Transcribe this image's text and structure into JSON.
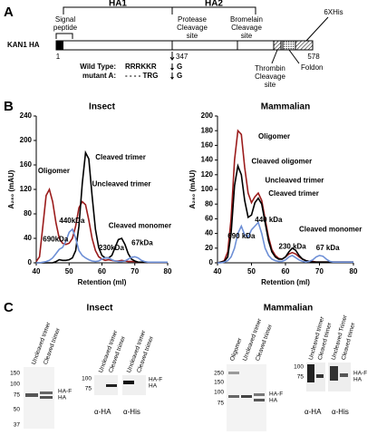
{
  "panel_labels": [
    "A",
    "B",
    "C"
  ],
  "panel_a": {
    "ha1": "HA1",
    "ha2": "HA2",
    "signal_peptide": [
      "Signal",
      "peptide"
    ],
    "protease_site": [
      "Protease",
      "Cleavage",
      "site"
    ],
    "bromelain_site": [
      "Bromelain",
      "Cleavage",
      "site"
    ],
    "his_tag": "6XHis",
    "construct": "KAN1 HA",
    "start": "1",
    "cleavage_position": "347",
    "end": "578",
    "wild_type_label": "Wild Type:",
    "wild_type_seq": "RRRKKR",
    "wild_type_product": "G",
    "mutant_label": "mutant A:",
    "mutant_seq": "- - - - TRG",
    "mutant_product": "G",
    "thrombin_site": [
      "Thrombin",
      "Cleavage",
      "site"
    ],
    "foldon": "Foldon"
  },
  "chart_data": [
    {
      "type": "line",
      "title": "Insect",
      "x_label": "Retention (ml)",
      "y_label": "A₂₈₀ (mAU)",
      "x": [
        40,
        41,
        42,
        43,
        44,
        45,
        46,
        47,
        48,
        49,
        50,
        51,
        52,
        53,
        54,
        55,
        56,
        57,
        58,
        59,
        60,
        61,
        62,
        63,
        64,
        65,
        66,
        67,
        68,
        69,
        70,
        71,
        72,
        73,
        74,
        75,
        76,
        77,
        78,
        79,
        80
      ],
      "series": [
        {
          "color": "#9b1c1c",
          "values": [
            2,
            10,
            60,
            110,
            120,
            100,
            65,
            40,
            32,
            30,
            32,
            40,
            60,
            90,
            100,
            95,
            70,
            40,
            20,
            10,
            6,
            4,
            5,
            4,
            3,
            3,
            4,
            3,
            2,
            2,
            2,
            1,
            1,
            1,
            1,
            1,
            1,
            1,
            1,
            1,
            1
          ]
        },
        {
          "color": "#000000",
          "values": [
            0,
            0,
            0,
            0,
            0,
            0,
            2,
            5,
            4,
            4,
            5,
            8,
            20,
            60,
            130,
            180,
            170,
            110,
            55,
            25,
            12,
            8,
            8,
            12,
            25,
            38,
            40,
            30,
            15,
            6,
            3,
            1,
            1,
            1,
            1,
            1,
            1,
            1,
            1,
            1,
            1
          ]
        },
        {
          "color": "#6d8fd6",
          "values": [
            0,
            0,
            1,
            2,
            4,
            8,
            15,
            22,
            25,
            35,
            50,
            55,
            40,
            20,
            12,
            8,
            5,
            3,
            2,
            3,
            6,
            8,
            8,
            5,
            3,
            2,
            2,
            3,
            6,
            9,
            10,
            8,
            4,
            2,
            1,
            1,
            1,
            1,
            1,
            1,
            1
          ]
        }
      ],
      "xlim": [
        40,
        80
      ],
      "ylim": [
        0,
        240
      ],
      "xticks": [
        40,
        50,
        60,
        70,
        80
      ],
      "yticks": [
        0,
        40,
        80,
        120,
        160,
        200,
        240
      ],
      "annotations": [
        "Oligomer",
        "Cleaved trimer",
        "Uncleaved trimer",
        "440kDa",
        "Cleaved monomer",
        "690kDa",
        "230kDa",
        "67kDa"
      ]
    },
    {
      "type": "line",
      "title": "Mammalian",
      "x_label": "Retention (ml)",
      "y_label": "A₂₈₀ (mAU)",
      "x": [
        40,
        41,
        42,
        43,
        44,
        45,
        46,
        47,
        48,
        49,
        50,
        51,
        52,
        53,
        54,
        55,
        56,
        57,
        58,
        59,
        60,
        61,
        62,
        63,
        64,
        65,
        66,
        67,
        68,
        69,
        70,
        71,
        72,
        73,
        74,
        75,
        76,
        77,
        78,
        79,
        80
      ],
      "series": [
        {
          "color": "#9b1c1c",
          "values": [
            0,
            1,
            3,
            15,
            60,
            140,
            180,
            175,
            130,
            95,
            82,
            90,
            95,
            85,
            60,
            35,
            18,
            10,
            6,
            5,
            8,
            12,
            14,
            12,
            8,
            5,
            3,
            2,
            2,
            1,
            1,
            1,
            1,
            1,
            1,
            1,
            1,
            1,
            1,
            1,
            1
          ]
        },
        {
          "color": "#000000",
          "values": [
            0,
            1,
            2,
            8,
            40,
            105,
            132,
            120,
            85,
            62,
            65,
            82,
            88,
            80,
            55,
            30,
            15,
            8,
            5,
            5,
            8,
            15,
            20,
            17,
            10,
            5,
            3,
            2,
            1,
            1,
            1,
            1,
            1,
            1,
            1,
            1,
            1,
            1,
            1,
            1,
            1
          ]
        },
        {
          "color": "#6d8fd6",
          "values": [
            0,
            0,
            1,
            3,
            8,
            20,
            40,
            50,
            38,
            35,
            45,
            50,
            55,
            40,
            20,
            10,
            5,
            3,
            2,
            2,
            4,
            8,
            10,
            7,
            4,
            2,
            1,
            2,
            4,
            8,
            10,
            9,
            5,
            2,
            1,
            1,
            1,
            1,
            1,
            1,
            1
          ]
        }
      ],
      "xlim": [
        40,
        80
      ],
      "ylim": [
        0,
        200
      ],
      "xticks": [
        40,
        50,
        60,
        70,
        80
      ],
      "yticks": [
        0,
        20,
        40,
        60,
        80,
        100,
        120,
        140,
        160,
        180,
        200
      ],
      "annotations": [
        "Oligomer",
        "Cleaved oligomer",
        "Uncleaved trimer",
        "Cleaved trimer",
        "440 kDa",
        "690 kDa",
        "230 kDa",
        "Cleaved monomer",
        "67 kDa"
      ]
    }
  ],
  "panel_c": {
    "insect": {
      "title": "Insect",
      "gel": {
        "lanes": [
          "Uncleaved trimer",
          "Cleaved trimer"
        ],
        "markers": [
          "150",
          "100",
          "75",
          "50",
          "37"
        ],
        "bands": [
          "HA-F",
          "HA"
        ]
      },
      "blot_ha": {
        "lanes": [
          "Uncleaved trimer",
          "Cleaved trimer"
        ],
        "markers": [
          "100",
          "75"
        ],
        "antibody": "α-HA"
      },
      "blot_his": {
        "lanes": [
          "Uncleaved trimer",
          "Cleaved trimer"
        ],
        "bands": [
          "HA-F",
          "HA"
        ],
        "antibody": "α-His"
      }
    },
    "mammalian": {
      "title": "Mammalian",
      "gel": {
        "lanes": [
          "Oligomer",
          "Uncleaved trimer",
          "Cleaved trimer"
        ],
        "markers": [
          "250",
          "150",
          "100",
          "75"
        ],
        "bands": [
          "HA-F",
          "HA"
        ]
      },
      "blot_ha": {
        "lanes": [
          "Uncleaved trimer",
          "Cleaved trimer"
        ],
        "markers": [
          "100",
          "75"
        ],
        "antibody": "α-HA"
      },
      "blot_his": {
        "lanes": [
          "Uncleaved Trimer",
          "Cleaved trimer"
        ],
        "bands": [
          "HA-F",
          "HA"
        ],
        "antibody": "α-His"
      }
    }
  }
}
